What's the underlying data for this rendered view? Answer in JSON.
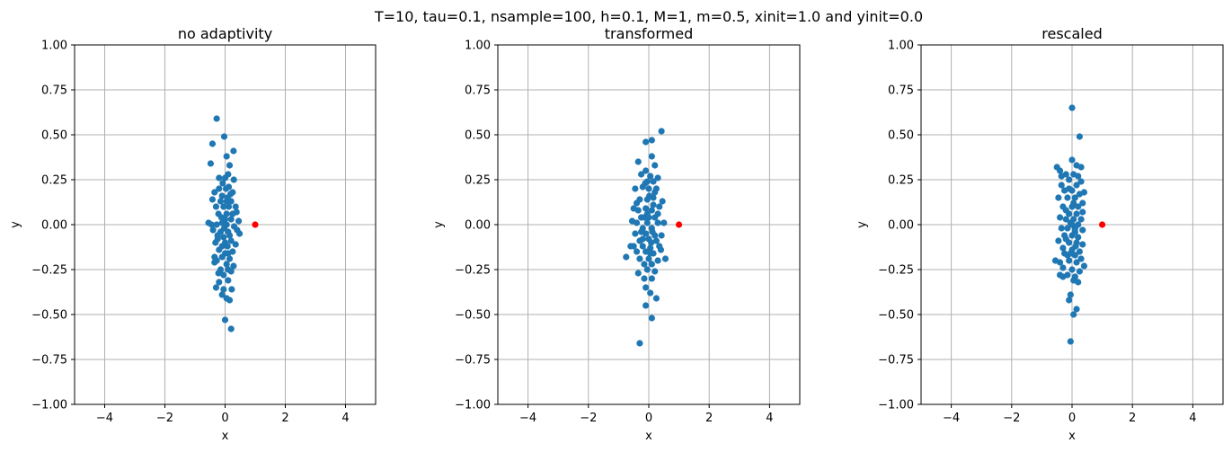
{
  "suptitle": "T=10, tau=0.1, nsample=100, h=0.1, M=1, m=0.5, xinit=1.0 and yinit=0.0",
  "colors": {
    "sample": "#1f77b4",
    "init": "#ff0000",
    "grid": "#b0b0b0"
  },
  "chart_data": [
    {
      "type": "scatter",
      "title": "no adaptivity",
      "xlabel": "x",
      "ylabel": "y",
      "xlim": [
        -5,
        5
      ],
      "ylim": [
        -1,
        1
      ],
      "xticks": [
        "−4",
        "−2",
        "0",
        "2",
        "4"
      ],
      "yticks": [
        "−1.00",
        "−0.75",
        "−0.50",
        "−0.25",
        "0.00",
        "0.25",
        "0.50",
        "0.75",
        "1.00"
      ],
      "grid": true,
      "init_point": {
        "x": 1.0,
        "y": 0.0
      },
      "points": [
        [
          -0.28,
          0.59
        ],
        [
          -0.03,
          0.49
        ],
        [
          0.05,
          0.38
        ],
        [
          0.28,
          0.41
        ],
        [
          -0.42,
          0.45
        ],
        [
          0.15,
          0.33
        ],
        [
          -0.48,
          0.34
        ],
        [
          -0.2,
          0.26
        ],
        [
          0.0,
          0.26
        ],
        [
          0.29,
          0.25
        ],
        [
          0.1,
          0.28
        ],
        [
          -0.35,
          0.18
        ],
        [
          -0.2,
          0.2
        ],
        [
          0.03,
          0.2
        ],
        [
          0.12,
          0.21
        ],
        [
          0.25,
          0.18
        ],
        [
          -0.42,
          0.14
        ],
        [
          -0.1,
          0.16
        ],
        [
          0.08,
          0.15
        ],
        [
          0.2,
          0.13
        ],
        [
          0.35,
          0.1
        ],
        [
          -0.3,
          0.1
        ],
        [
          -0.05,
          0.1
        ],
        [
          0.12,
          0.1
        ],
        [
          -0.22,
          0.06
        ],
        [
          0.05,
          0.06
        ],
        [
          0.25,
          0.06
        ],
        [
          -0.12,
          0.04
        ],
        [
          0.2,
          0.03
        ],
        [
          0.45,
          0.02
        ],
        [
          -0.55,
          0.01
        ],
        [
          -0.45,
          0.0
        ],
        [
          -0.28,
          0.0
        ],
        [
          -0.1,
          0.01
        ],
        [
          0.05,
          0.0
        ],
        [
          0.3,
          -0.01
        ],
        [
          -0.4,
          -0.03
        ],
        [
          -0.15,
          -0.04
        ],
        [
          0.1,
          -0.04
        ],
        [
          0.48,
          -0.05
        ],
        [
          -0.25,
          -0.08
        ],
        [
          -0.05,
          -0.07
        ],
        [
          0.2,
          -0.09
        ],
        [
          -0.32,
          -0.1
        ],
        [
          -0.1,
          -0.12
        ],
        [
          0.08,
          -0.12
        ],
        [
          0.35,
          -0.11
        ],
        [
          -0.2,
          -0.14
        ],
        [
          0.0,
          -0.16
        ],
        [
          0.25,
          -0.15
        ],
        [
          -0.35,
          -0.18
        ],
        [
          -0.1,
          -0.18
        ],
        [
          0.15,
          -0.19
        ],
        [
          -0.28,
          -0.2
        ],
        [
          0.05,
          -0.22
        ],
        [
          0.28,
          -0.23
        ],
        [
          -0.15,
          -0.25
        ],
        [
          0.1,
          -0.25
        ],
        [
          -0.22,
          -0.27
        ],
        [
          0.2,
          -0.26
        ],
        [
          -0.05,
          -0.28
        ],
        [
          -0.2,
          -0.32
        ],
        [
          0.1,
          -0.31
        ],
        [
          -0.3,
          -0.35
        ],
        [
          -0.05,
          -0.36
        ],
        [
          0.22,
          -0.36
        ],
        [
          -0.1,
          -0.39
        ],
        [
          0.05,
          -0.41
        ],
        [
          0.15,
          -0.42
        ],
        [
          0.0,
          -0.53
        ],
        [
          0.2,
          -0.58
        ],
        [
          0.05,
          0.13
        ],
        [
          -0.15,
          0.13
        ],
        [
          0.38,
          0.07
        ],
        [
          -0.03,
          -0.02
        ],
        [
          0.15,
          -0.06
        ],
        [
          -0.25,
          -0.06
        ],
        [
          0.0,
          0.03
        ],
        [
          0.18,
          0.17
        ],
        [
          -0.08,
          0.23
        ],
        [
          0.1,
          -0.16
        ],
        [
          -0.35,
          -0.21
        ],
        [
          0.4,
          -0.03
        ],
        [
          0.0,
          -0.1
        ]
      ]
    },
    {
      "type": "scatter",
      "title": "transformed",
      "xlabel": "x",
      "ylabel": "y",
      "xlim": [
        -5,
        5
      ],
      "ylim": [
        -1,
        1
      ],
      "xticks": [
        "−4",
        "−2",
        "0",
        "2",
        "4"
      ],
      "yticks": [
        "−1.00",
        "−0.75",
        "−0.50",
        "−0.25",
        "0.00",
        "0.25",
        "0.50",
        "0.75",
        "1.00"
      ],
      "grid": true,
      "init_point": {
        "x": 1.0,
        "y": 0.0
      },
      "points": [
        [
          0.42,
          0.52
        ],
        [
          -0.1,
          0.46
        ],
        [
          0.1,
          0.47
        ],
        [
          0.1,
          0.38
        ],
        [
          -0.35,
          0.35
        ],
        [
          0.2,
          0.33
        ],
        [
          -0.1,
          0.3
        ],
        [
          -0.25,
          0.28
        ],
        [
          0.05,
          0.27
        ],
        [
          0.3,
          0.26
        ],
        [
          -0.05,
          0.24
        ],
        [
          0.15,
          0.24
        ],
        [
          -0.45,
          0.2
        ],
        [
          -0.2,
          0.21
        ],
        [
          0.0,
          0.2
        ],
        [
          0.25,
          0.2
        ],
        [
          -0.3,
          0.14
        ],
        [
          -0.05,
          0.14
        ],
        [
          0.15,
          0.15
        ],
        [
          -0.5,
          0.09
        ],
        [
          -0.35,
          0.08
        ],
        [
          -0.1,
          0.09
        ],
        [
          0.1,
          0.08
        ],
        [
          0.35,
          0.1
        ],
        [
          -0.25,
          0.04
        ],
        [
          0.0,
          0.04
        ],
        [
          0.2,
          0.04
        ],
        [
          -0.55,
          0.02
        ],
        [
          -0.4,
          0.01
        ],
        [
          -0.05,
          0.01
        ],
        [
          0.3,
          0.01
        ],
        [
          0.5,
          0.01
        ],
        [
          -0.2,
          -0.02
        ],
        [
          0.1,
          -0.02
        ],
        [
          -0.45,
          -0.05
        ],
        [
          -0.1,
          -0.05
        ],
        [
          0.2,
          -0.06
        ],
        [
          0.42,
          -0.06
        ],
        [
          -0.3,
          -0.09
        ],
        [
          0.0,
          -0.08
        ],
        [
          0.25,
          -0.09
        ],
        [
          -0.5,
          -0.12
        ],
        [
          -0.2,
          -0.12
        ],
        [
          0.05,
          -0.13
        ],
        [
          0.35,
          -0.12
        ],
        [
          -0.4,
          -0.15
        ],
        [
          -0.1,
          -0.15
        ],
        [
          0.15,
          -0.16
        ],
        [
          -0.75,
          -0.18
        ],
        [
          -0.3,
          -0.19
        ],
        [
          0.0,
          -0.19
        ],
        [
          0.3,
          -0.2
        ],
        [
          0.55,
          -0.19
        ],
        [
          -0.15,
          -0.22
        ],
        [
          0.1,
          -0.22
        ],
        [
          -0.35,
          -0.27
        ],
        [
          -0.05,
          -0.25
        ],
        [
          0.2,
          -0.26
        ],
        [
          -0.15,
          -0.3
        ],
        [
          0.1,
          -0.3
        ],
        [
          -0.1,
          -0.35
        ],
        [
          0.05,
          -0.38
        ],
        [
          0.25,
          -0.41
        ],
        [
          -0.1,
          -0.45
        ],
        [
          0.1,
          -0.52
        ],
        [
          -0.3,
          -0.66
        ],
        [
          0.15,
          0.11
        ],
        [
          -0.15,
          0.04
        ],
        [
          0.08,
          -0.1
        ],
        [
          -0.25,
          -0.04
        ],
        [
          0.2,
          0.18
        ],
        [
          0.4,
          -0.14
        ],
        [
          -0.05,
          0.06
        ],
        [
          0.05,
          -0.16
        ],
        [
          -0.4,
          0.12
        ],
        [
          0.3,
          0.06
        ],
        [
          -0.2,
          -0.08
        ],
        [
          0.02,
          0.16
        ],
        [
          -0.6,
          -0.12
        ],
        [
          0.45,
          0.13
        ],
        [
          0.12,
          -0.04
        ],
        [
          -0.12,
          0.23
        ]
      ]
    },
    {
      "type": "scatter",
      "title": "rescaled",
      "xlabel": "x",
      "ylabel": "y",
      "xlim": [
        -5,
        5
      ],
      "ylim": [
        -1,
        1
      ],
      "xticks": [
        "−4",
        "−2",
        "0",
        "2",
        "4"
      ],
      "yticks": [
        "−1.00",
        "−0.75",
        "−0.50",
        "−0.25",
        "0.00",
        "0.25",
        "0.50",
        "0.75",
        "1.00"
      ],
      "grid": true,
      "init_point": {
        "x": 1.0,
        "y": 0.0
      },
      "points": [
        [
          0.0,
          0.65
        ],
        [
          0.25,
          0.49
        ],
        [
          0.0,
          0.36
        ],
        [
          0.15,
          0.33
        ],
        [
          -0.5,
          0.32
        ],
        [
          -0.4,
          0.3
        ],
        [
          0.3,
          0.32
        ],
        [
          -0.2,
          0.28
        ],
        [
          0.05,
          0.28
        ],
        [
          0.3,
          0.24
        ],
        [
          -0.1,
          0.25
        ],
        [
          -0.35,
          0.22
        ],
        [
          0.15,
          0.22
        ],
        [
          0.4,
          0.18
        ],
        [
          -0.25,
          0.19
        ],
        [
          0.0,
          0.19
        ],
        [
          -0.45,
          0.15
        ],
        [
          -0.15,
          0.15
        ],
        [
          0.1,
          0.15
        ],
        [
          0.35,
          0.12
        ],
        [
          -0.3,
          0.1
        ],
        [
          0.0,
          0.1
        ],
        [
          0.2,
          0.1
        ],
        [
          -0.1,
          0.06
        ],
        [
          0.15,
          0.06
        ],
        [
          -0.4,
          0.04
        ],
        [
          -0.2,
          0.03
        ],
        [
          0.05,
          0.03
        ],
        [
          0.3,
          0.03
        ],
        [
          -0.05,
          0.01
        ],
        [
          0.2,
          0.0
        ],
        [
          -0.35,
          -0.02
        ],
        [
          -0.15,
          -0.02
        ],
        [
          0.1,
          -0.02
        ],
        [
          0.35,
          -0.03
        ],
        [
          -0.25,
          -0.06
        ],
        [
          0.0,
          -0.06
        ],
        [
          0.2,
          -0.07
        ],
        [
          -0.45,
          -0.09
        ],
        [
          -0.1,
          -0.1
        ],
        [
          0.15,
          -0.1
        ],
        [
          0.35,
          -0.11
        ],
        [
          -0.3,
          -0.13
        ],
        [
          0.0,
          -0.14
        ],
        [
          0.25,
          -0.15
        ],
        [
          -0.15,
          -0.17
        ],
        [
          0.1,
          -0.17
        ],
        [
          -0.55,
          -0.2
        ],
        [
          -0.4,
          -0.21
        ],
        [
          -0.1,
          -0.2
        ],
        [
          0.15,
          -0.21
        ],
        [
          0.4,
          -0.23
        ],
        [
          -0.3,
          -0.24
        ],
        [
          0.0,
          -0.25
        ],
        [
          0.25,
          -0.26
        ],
        [
          -0.4,
          -0.28
        ],
        [
          -0.15,
          -0.28
        ],
        [
          0.1,
          -0.29
        ],
        [
          -0.3,
          -0.29
        ],
        [
          0.05,
          -0.31
        ],
        [
          0.2,
          -0.32
        ],
        [
          -0.05,
          -0.39
        ],
        [
          -0.1,
          -0.42
        ],
        [
          0.15,
          -0.47
        ],
        [
          0.05,
          -0.5
        ],
        [
          -0.05,
          -0.65
        ],
        [
          0.05,
          0.12
        ],
        [
          -0.2,
          0.08
        ],
        [
          0.1,
          -0.04
        ],
        [
          -0.05,
          -0.16
        ],
        [
          0.25,
          0.17
        ],
        [
          -0.35,
          0.27
        ],
        [
          0.3,
          -0.19
        ],
        [
          -0.2,
          -0.08
        ],
        [
          0.0,
          0.0
        ],
        [
          0.2,
          0.27
        ],
        [
          -0.1,
          0.2
        ],
        [
          0.12,
          -0.12
        ],
        [
          -0.25,
          -0.16
        ],
        [
          0.35,
          0.07
        ]
      ]
    }
  ]
}
